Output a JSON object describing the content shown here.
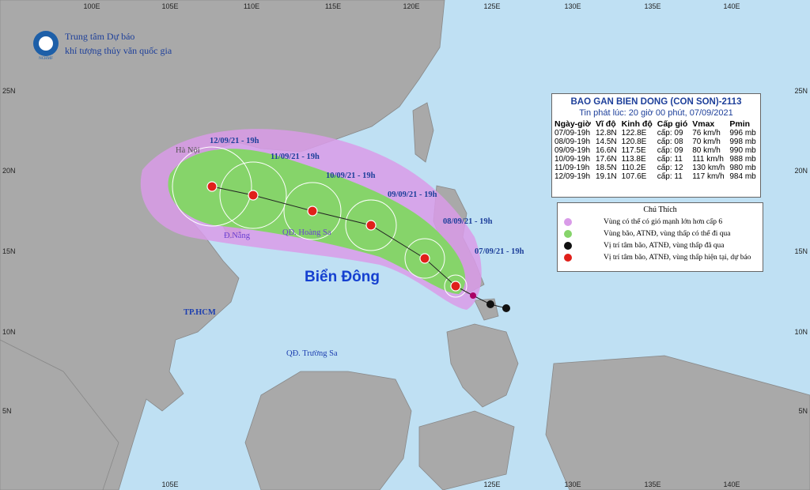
{
  "header": {
    "line1": "Trung tâm Dự báo",
    "line2": "khí tượng thủy văn quốc gia",
    "logo": "NCHMF"
  },
  "bulletin": {
    "title": "BAO GAN BIEN DONG (CON SON)-2113",
    "issued": "Tin phát lúc: 20 giờ 00 phút, 07/09/2021",
    "columns": [
      "Ngày-giờ",
      "Vĩ độ",
      "Kinh độ",
      "Cấp gió",
      "Vmax",
      "Pmin"
    ],
    "rows": [
      [
        "07/09-19h",
        "12.8N",
        "122.8E",
        "cấp: 09",
        "76 km/h",
        "996 mb"
      ],
      [
        "08/09-19h",
        "14.5N",
        "120.8E",
        "cấp: 08",
        "70 km/h",
        "998 mb"
      ],
      [
        "09/09-19h",
        "16.6N",
        "117.5E",
        "cấp: 09",
        "80 km/h",
        "990 mb"
      ],
      [
        "10/09-19h",
        "17.6N",
        "113.8E",
        "cấp: 11",
        "111 km/h",
        "988 mb"
      ],
      [
        "11/09-19h",
        "18.5N",
        "110.2E",
        "cấp: 12",
        "130 km/h",
        "980 mb"
      ],
      [
        "12/09-19h",
        "19.1N",
        "107.6E",
        "cấp: 11",
        "117 km/h",
        "984 mb"
      ]
    ]
  },
  "legend": {
    "title": "Chú Thích",
    "items": [
      "Vùng có thể có gió mạnh lớn hơn cấp 6",
      "Vùng bão, ATNĐ, vùng thấp có thể đi qua",
      "Vị trí tâm bão, ATNĐ, vùng thấp đã qua",
      "Vị trí tâm bão, ATNĐ, vùng thấp hiện tại, dự báo"
    ]
  },
  "track_labels": [
    "12/09/21 - 19h",
    "11/09/21 - 19h",
    "10/09/21 - 19h",
    "09/09/21 - 19h",
    "08/09/21 - 19h",
    "07/09/21 - 19h"
  ],
  "places": [
    "Hà Nội",
    "Đ.Nẵng",
    "QĐ. Hoàng Sa",
    "TP.HCM",
    "QĐ. Trường Sa"
  ],
  "sea_label": "Biển Đông",
  "lon_labels_top": [
    "100E",
    "105E",
    "110E",
    "115E",
    "120E",
    "125E",
    "130E",
    "135E",
    "140E"
  ],
  "lon_labels_bottom": [
    "105E",
    "125E",
    "130E",
    "135E",
    "140E"
  ],
  "lat_labels": [
    "25N",
    "20N",
    "15N",
    "10N",
    "5N"
  ]
}
